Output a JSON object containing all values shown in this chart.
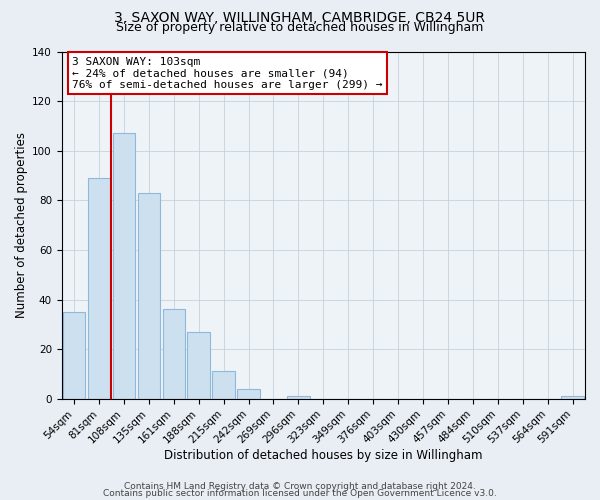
{
  "title": "3, SAXON WAY, WILLINGHAM, CAMBRIDGE, CB24 5UR",
  "subtitle": "Size of property relative to detached houses in Willingham",
  "xlabel": "Distribution of detached houses by size in Willingham",
  "ylabel": "Number of detached properties",
  "bar_labels": [
    "54sqm",
    "81sqm",
    "108sqm",
    "135sqm",
    "161sqm",
    "188sqm",
    "215sqm",
    "242sqm",
    "269sqm",
    "296sqm",
    "323sqm",
    "349sqm",
    "376sqm",
    "403sqm",
    "430sqm",
    "457sqm",
    "484sqm",
    "510sqm",
    "537sqm",
    "564sqm",
    "591sqm"
  ],
  "bar_heights": [
    35,
    89,
    107,
    83,
    36,
    27,
    11,
    4,
    0,
    1,
    0,
    0,
    0,
    0,
    0,
    0,
    0,
    0,
    0,
    0,
    1
  ],
  "bar_color": "#cce0f0",
  "bar_edge_color": "#90b8d8",
  "ylim": [
    0,
    140
  ],
  "yticks": [
    0,
    20,
    40,
    60,
    80,
    100,
    120,
    140
  ],
  "vline_color": "#cc0000",
  "vline_position": 2.0,
  "annotation_text_line1": "3 SAXON WAY: 103sqm",
  "annotation_text_line2": "← 24% of detached houses are smaller (94)",
  "annotation_text_line3": "76% of semi-detached houses are larger (299) →",
  "footer_line1": "Contains HM Land Registry data © Crown copyright and database right 2024.",
  "footer_line2": "Contains public sector information licensed under the Open Government Licence v3.0.",
  "bg_color": "#e8eef4",
  "plot_bg_color": "#eef3f8",
  "grid_color": "#c0ccd8",
  "title_fontsize": 10,
  "subtitle_fontsize": 9,
  "axis_label_fontsize": 8.5,
  "tick_fontsize": 7.5,
  "footer_fontsize": 6.5,
  "annotation_fontsize": 8
}
